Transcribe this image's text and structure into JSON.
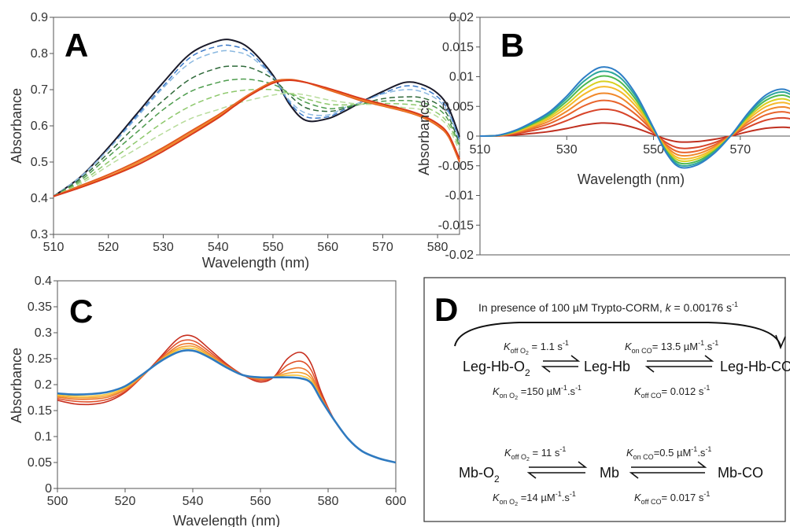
{
  "panels": {
    "A": {
      "letter": "A",
      "chart_data": {
        "type": "line",
        "xlabel": "Wavelength (nm)",
        "ylabel": "Absorbance",
        "xlim": [
          510,
          584
        ],
        "ylim": [
          0.3,
          0.9
        ],
        "xticks": [
          510,
          520,
          530,
          540,
          550,
          560,
          570,
          580
        ],
        "yticks": [
          0.3,
          0.4,
          0.5,
          0.6,
          0.7,
          0.8,
          0.9
        ],
        "ytick_labels": [
          "0.3",
          "0.4",
          "0.5",
          "0.6",
          "0.7",
          "0.8",
          "0.9"
        ],
        "x": [
          510,
          515,
          520,
          525,
          530,
          535,
          540,
          543,
          546,
          550,
          553,
          556,
          560,
          563,
          566,
          570,
          574,
          577,
          580,
          582,
          584
        ],
        "series": [
          {
            "color": "#1a1a2a",
            "dash": false,
            "values": [
              0.405,
              0.46,
              0.54,
              0.63,
              0.72,
              0.8,
              0.835,
              0.835,
              0.81,
              0.74,
              0.66,
              0.615,
              0.62,
              0.64,
              0.665,
              0.695,
              0.72,
              0.715,
              0.69,
              0.65,
              0.57
            ]
          },
          {
            "color": "#3a78c8",
            "dash": true,
            "values": [
              0.405,
              0.46,
              0.535,
              0.625,
              0.71,
              0.79,
              0.82,
              0.82,
              0.8,
              0.735,
              0.665,
              0.625,
              0.625,
              0.645,
              0.665,
              0.69,
              0.71,
              0.705,
              0.68,
              0.64,
              0.56
            ]
          },
          {
            "color": "#8ab8e0",
            "dash": true,
            "values": [
              0.405,
              0.46,
              0.535,
              0.62,
              0.705,
              0.775,
              0.805,
              0.805,
              0.79,
              0.735,
              0.67,
              0.635,
              0.63,
              0.65,
              0.665,
              0.688,
              0.7,
              0.695,
              0.672,
              0.635,
              0.56
            ]
          },
          {
            "color": "#2f6a3a",
            "dash": true,
            "values": [
              0.405,
              0.455,
              0.525,
              0.6,
              0.67,
              0.73,
              0.76,
              0.765,
              0.76,
              0.73,
              0.685,
              0.65,
              0.64,
              0.648,
              0.66,
              0.675,
              0.68,
              0.678,
              0.66,
              0.625,
              0.55
            ]
          },
          {
            "color": "#4e9d4e",
            "dash": true,
            "values": [
              0.405,
              0.45,
              0.515,
              0.58,
              0.645,
              0.695,
              0.72,
              0.728,
              0.728,
              0.715,
              0.69,
              0.665,
              0.648,
              0.652,
              0.66,
              0.668,
              0.67,
              0.665,
              0.648,
              0.615,
              0.545
            ]
          },
          {
            "color": "#8dc86b",
            "dash": true,
            "values": [
              0.405,
              0.445,
              0.5,
              0.555,
              0.61,
              0.655,
              0.685,
              0.695,
              0.7,
              0.7,
              0.69,
              0.675,
              0.66,
              0.658,
              0.66,
              0.662,
              0.66,
              0.655,
              0.635,
              0.605,
              0.54
            ]
          },
          {
            "color": "#b8dc9c",
            "dash": true,
            "values": [
              0.405,
              0.44,
              0.49,
              0.535,
              0.58,
              0.62,
              0.645,
              0.66,
              0.672,
              0.685,
              0.69,
              0.685,
              0.672,
              0.665,
              0.66,
              0.658,
              0.65,
              0.645,
              0.625,
              0.595,
              0.53
            ]
          },
          {
            "color": "#e25a20",
            "dash": false,
            "values": [
              0.405,
              0.435,
              0.465,
              0.5,
              0.54,
              0.585,
              0.63,
              0.66,
              0.69,
              0.722,
              0.728,
              0.72,
              0.7,
              0.685,
              0.67,
              0.655,
              0.64,
              0.625,
              0.6,
              0.57,
              0.5
            ]
          },
          {
            "color": "#f08a28",
            "dash": false,
            "values": [
              0.405,
              0.432,
              0.46,
              0.495,
              0.535,
              0.58,
              0.626,
              0.657,
              0.688,
              0.72,
              0.727,
              0.72,
              0.702,
              0.688,
              0.673,
              0.657,
              0.642,
              0.627,
              0.603,
              0.573,
              0.505
            ]
          },
          {
            "color": "#d93a1c",
            "dash": false,
            "values": [
              0.405,
              0.43,
              0.458,
              0.49,
              0.53,
              0.575,
              0.622,
              0.655,
              0.686,
              0.718,
              0.726,
              0.72,
              0.704,
              0.69,
              0.676,
              0.66,
              0.645,
              0.63,
              0.606,
              0.576,
              0.508
            ]
          }
        ]
      }
    },
    "B": {
      "letter": "B",
      "chart_data": {
        "type": "line",
        "xlabel": "Wavelength (nm)",
        "ylabel": "Absorbance",
        "xlim": [
          510,
          584
        ],
        "ylim": [
          -0.02,
          0.02
        ],
        "xticks": [
          510,
          530,
          550,
          570
        ],
        "yticks": [
          -0.02,
          -0.015,
          -0.01,
          -0.005,
          0,
          0.005,
          0.01,
          0.015,
          0.02
        ],
        "ytick_labels": [
          "-0.02",
          "-0.015",
          "-0.01",
          "-0.005",
          "0",
          "0.005",
          "0.01",
          "0.015",
          "0.02"
        ],
        "x": [
          510,
          514,
          518,
          522,
          526,
          530,
          534,
          538,
          542,
          546,
          550,
          553,
          556,
          560,
          564,
          568,
          572,
          576,
          580,
          584
        ],
        "shape": [
          0,
          0.01,
          0.08,
          0.2,
          0.35,
          0.58,
          0.85,
          1.0,
          0.92,
          0.6,
          0.12,
          -0.25,
          -0.45,
          -0.42,
          -0.25,
          0.02,
          0.35,
          0.6,
          0.68,
          0.55
        ],
        "series": [
          {
            "color": "#c03020",
            "peak": 0.0022
          },
          {
            "color": "#d8452a",
            "peak": 0.0045
          },
          {
            "color": "#e8642c",
            "peak": 0.006
          },
          {
            "color": "#f0882a",
            "peak": 0.0072
          },
          {
            "color": "#f6b92a",
            "peak": 0.0083
          },
          {
            "color": "#d8d020",
            "peak": 0.0092
          },
          {
            "color": "#4cb850",
            "peak": 0.0101
          },
          {
            "color": "#2ea79c",
            "peak": 0.0109
          },
          {
            "color": "#2e7ec6",
            "peak": 0.0116
          }
        ]
      }
    },
    "C": {
      "letter": "C",
      "chart_data": {
        "type": "line",
        "xlabel": "Wavelength (nm)",
        "ylabel": "Absorbance",
        "xlim": [
          500,
          600
        ],
        "ylim": [
          0,
          0.4
        ],
        "xticks": [
          500,
          520,
          540,
          560,
          580,
          600
        ],
        "yticks": [
          0,
          0.05,
          0.1,
          0.15,
          0.2,
          0.25,
          0.3,
          0.35,
          0.4
        ],
        "ytick_labels": [
          "0",
          "0.05",
          "0.1",
          "0.15",
          "0.2",
          "0.25",
          "0.3",
          "0.35",
          "0.4"
        ],
        "x": [
          500,
          505,
          510,
          515,
          520,
          525,
          530,
          535,
          538,
          541,
          545,
          550,
          555,
          560,
          564,
          568,
          572,
          575,
          578,
          582,
          586,
          590,
          595,
          600
        ],
        "series": [
          {
            "color": "#c83020",
            "values": [
              0.17,
              0.163,
              0.162,
              0.168,
              0.185,
              0.215,
              0.25,
              0.285,
              0.295,
              0.29,
              0.268,
              0.24,
              0.218,
              0.205,
              0.215,
              0.25,
              0.262,
              0.24,
              0.185,
              0.13,
              0.095,
              0.072,
              0.058,
              0.05
            ]
          },
          {
            "color": "#e0502a",
            "values": [
              0.173,
              0.168,
              0.167,
              0.172,
              0.187,
              0.215,
              0.248,
              0.278,
              0.286,
              0.282,
              0.263,
              0.238,
              0.218,
              0.208,
              0.215,
              0.238,
              0.245,
              0.228,
              0.18,
              0.13,
              0.095,
              0.072,
              0.058,
              0.05
            ]
          },
          {
            "color": "#ec7830",
            "values": [
              0.176,
              0.172,
              0.172,
              0.176,
              0.19,
              0.216,
              0.246,
              0.272,
              0.279,
              0.276,
              0.259,
              0.236,
              0.218,
              0.21,
              0.215,
              0.228,
              0.232,
              0.218,
              0.176,
              0.13,
              0.095,
              0.072,
              0.058,
              0.05
            ]
          },
          {
            "color": "#f4a030",
            "values": [
              0.178,
              0.175,
              0.175,
              0.179,
              0.192,
              0.217,
              0.245,
              0.268,
              0.274,
              0.272,
              0.256,
              0.235,
              0.218,
              0.212,
              0.215,
              0.222,
              0.223,
              0.212,
              0.174,
              0.13,
              0.095,
              0.072,
              0.058,
              0.05
            ]
          },
          {
            "color": "#f8c436",
            "values": [
              0.18,
              0.178,
              0.178,
              0.182,
              0.194,
              0.218,
              0.244,
              0.265,
              0.27,
              0.268,
              0.254,
              0.234,
              0.218,
              0.213,
              0.215,
              0.218,
              0.217,
              0.207,
              0.172,
              0.13,
              0.095,
              0.072,
              0.058,
              0.05
            ]
          },
          {
            "color": "#2f7ac0",
            "values": [
              0.183,
              0.181,
              0.182,
              0.186,
              0.197,
              0.219,
              0.243,
              0.261,
              0.266,
              0.264,
              0.252,
              0.233,
              0.218,
              0.214,
              0.214,
              0.214,
              0.212,
              0.203,
              0.17,
              0.13,
              0.095,
              0.072,
              0.058,
              0.05
            ]
          }
        ]
      }
    },
    "D": {
      "letter": "D",
      "header_text": "In presence of 100 µM Trypto-CORM, ",
      "header_k": "k",
      "header_value": " = 0.00176 s",
      "header_sup": "-1",
      "row1": {
        "left": "Leg-Hb-O",
        "left_sub": "2",
        "middle": "Leg-Hb",
        "right": "Leg-Hb-CO",
        "koff_o2": {
          "K": "K",
          "sub": "off O",
          "sub2": "2",
          "val": " = 1.1 s",
          "sup": "-1"
        },
        "kon_o2": {
          "K": "K",
          "sub": "on O",
          "sub2": "2",
          "val": " =150 µM",
          "sup": "-1",
          "tail": ".s",
          "sup2": "-1"
        },
        "kon_co": {
          "K": "K",
          "sub": "on CO",
          "val": "= 13.5 µM",
          "sup": "-1",
          "tail": ".s",
          "sup2": "-1"
        },
        "koff_co": {
          "K": "K",
          "sub": "off CO",
          "val": "= 0.012 s",
          "sup": "-1"
        }
      },
      "row2": {
        "left": "Mb-O",
        "left_sub": "2",
        "middle": "Mb",
        "right": "Mb-CO",
        "koff_o2": {
          "K": "K",
          "sub": "off O",
          "sub2": "2",
          "val": " = 11 s",
          "sup": "-1"
        },
        "kon_o2": {
          "K": "K",
          "sub": "on O",
          "sub2": "2",
          "val": " =14 µM",
          "sup": "-1",
          "tail": ".s",
          "sup2": "-1"
        },
        "kon_co": {
          "K": "K",
          "sub": "on CO",
          "val": "=0.5 µM",
          "sup": "-1",
          "tail": ".s",
          "sup2": "-1"
        },
        "koff_co": {
          "K": "K",
          "sub": "off CO",
          "val": "= 0.017 s",
          "sup": "-1"
        }
      }
    }
  }
}
